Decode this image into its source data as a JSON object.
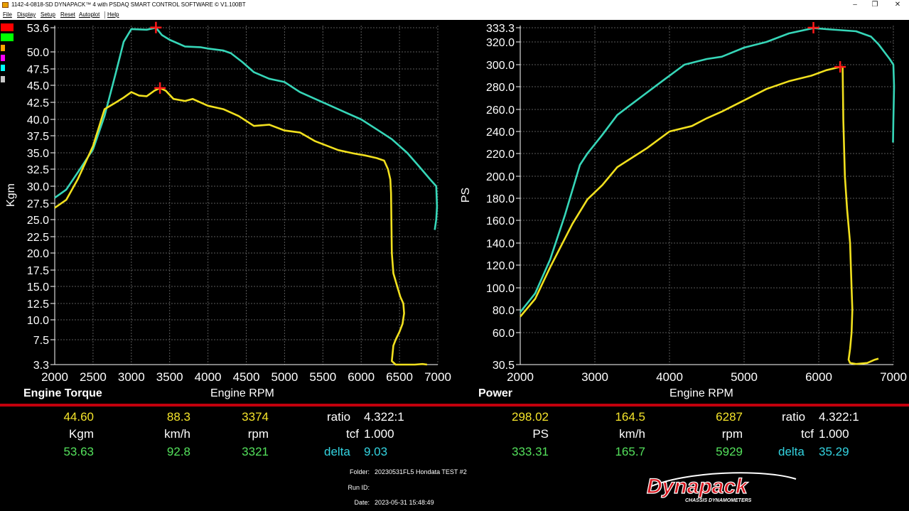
{
  "window": {
    "title": "1142-4-0818-SD DYNAPACK™ 4 with PSDAQ SMART CONTROL SOFTWARE © V1.100BT",
    "buttons": [
      "–",
      "❐",
      "✕"
    ]
  },
  "menu": [
    "File",
    "Display",
    "Setup",
    "Reset",
    "Autoplot",
    "Help"
  ],
  "legend_colors": [
    "#ff0000",
    "#00ff00",
    "#ffa500",
    "#ff00ff",
    "#00ffff",
    "#c8c8c8"
  ],
  "colors": {
    "series_a": "#36d6b8",
    "series_b": "#f1e01e",
    "marker": "#ff1a1a",
    "divider": "#c3000c"
  },
  "chart_data": [
    {
      "type": "line",
      "title": "Engine Torque",
      "xlabel": "Engine RPM",
      "ylabel": "Kgm",
      "xlim": [
        2000,
        7000
      ],
      "xticks": [
        2000,
        2500,
        3000,
        3500,
        4000,
        4500,
        5000,
        5500,
        6000,
        6500,
        7000
      ],
      "xtick_labels": [
        "2000",
        "2500",
        "3000",
        "3500",
        "4000",
        "4500",
        "5000",
        "5500",
        "6000",
        "6500",
        "7000"
      ],
      "yticks": [
        3.3,
        7.5,
        10.0,
        12.5,
        15.0,
        17.5,
        20.0,
        22.5,
        25.0,
        27.5,
        30.0,
        32.5,
        35.0,
        37.5,
        40.0,
        42.5,
        45.0,
        47.5,
        50.0,
        53.6
      ],
      "ytick_labels": [
        "3.3",
        "7.5",
        "10.0",
        "12.5",
        "15.0",
        "17.5",
        "20.0",
        "22.5",
        "25.0",
        "27.5",
        "30.0",
        "32.5",
        "35.0",
        "37.5",
        "40.0",
        "42.5",
        "45.0",
        "47.5",
        "50.0",
        "53.6"
      ],
      "grid": true,
      "peak_markers": [
        {
          "x": 3321,
          "y": 53.63
        },
        {
          "x": 3374,
          "y": 44.6
        }
      ],
      "series": [
        {
          "color": "#36d6b8",
          "x": [
            2000,
            2150,
            2300,
            2500,
            2650,
            2800,
            2900,
            3000,
            3200,
            3321,
            3400,
            3500,
            3700,
            3900,
            4000,
            4200,
            4300,
            4450,
            4600,
            4800,
            5000,
            5200,
            5400,
            5600,
            5800,
            6000,
            6200,
            6400,
            6600,
            6750,
            6900,
            6980,
            6990,
            6980,
            6960
          ],
          "y": [
            28.3,
            29.5,
            32.0,
            35.5,
            40.5,
            47.0,
            51.5,
            53.4,
            53.3,
            53.6,
            52.5,
            51.8,
            50.8,
            50.7,
            50.5,
            50.2,
            49.8,
            48.5,
            47.0,
            46.0,
            45.5,
            44.0,
            43.0,
            42.0,
            41.0,
            40.0,
            38.5,
            37.0,
            35.0,
            33.0,
            31.0,
            30.0,
            27.0,
            25.0,
            23.5
          ]
        },
        {
          "color": "#f1e01e",
          "x": [
            2000,
            2150,
            2300,
            2500,
            2650,
            2800,
            2900,
            3000,
            3100,
            3200,
            3300,
            3374,
            3450,
            3550,
            3700,
            3800,
            4000,
            4200,
            4400,
            4600,
            4800,
            5000,
            5200,
            5400,
            5700,
            5900,
            6050,
            6200,
            6300,
            6350,
            6380,
            6390,
            6400,
            6420,
            6470,
            6510,
            6550,
            6560,
            6540,
            6500,
            6450,
            6420,
            6400,
            6450,
            6550,
            6700,
            6800,
            6860
          ],
          "y": [
            26.8,
            28.0,
            31.0,
            36.0,
            41.5,
            42.5,
            43.2,
            44.0,
            43.5,
            43.4,
            44.2,
            44.6,
            44.2,
            43.0,
            42.7,
            43.0,
            42.0,
            41.5,
            40.5,
            39.0,
            39.2,
            38.3,
            38.0,
            36.7,
            35.4,
            34.9,
            34.6,
            34.2,
            33.8,
            32.5,
            31.0,
            29.0,
            20.0,
            17.0,
            15.0,
            13.5,
            12.5,
            11.0,
            9.5,
            8.5,
            7.5,
            6.5,
            3.9,
            3.3,
            3.3,
            3.3,
            3.4,
            3.3
          ]
        }
      ]
    },
    {
      "type": "line",
      "title": "Power",
      "xlabel": "Engine RPM",
      "ylabel": "PS",
      "xlim": [
        2000,
        7000
      ],
      "xticks": [
        2000,
        3000,
        4000,
        5000,
        6000,
        7000
      ],
      "xtick_labels": [
        "2000",
        "3000",
        "4000",
        "5000",
        "6000",
        "7000"
      ],
      "yticks": [
        30.5,
        60.0,
        80.0,
        100.0,
        120.0,
        140.0,
        160.0,
        180.0,
        200.0,
        220.0,
        240.0,
        260.0,
        280.0,
        300.0,
        320.0,
        333.3
      ],
      "ytick_labels": [
        "30.5",
        "60.0",
        "80.0",
        "100.0",
        "120.0",
        "140.0",
        "160.0",
        "180.0",
        "200.0",
        "220.0",
        "240.0",
        "260.0",
        "280.0",
        "300.0",
        "320.0",
        "333.3"
      ],
      "grid": true,
      "peak_markers": [
        {
          "x": 5929,
          "y": 333.31
        },
        {
          "x": 6287,
          "y": 298.02
        }
      ],
      "series": [
        {
          "color": "#36d6b8",
          "x": [
            2000,
            2200,
            2400,
            2600,
            2800,
            2900,
            3100,
            3300,
            3600,
            3900,
            4200,
            4500,
            4700,
            5000,
            5300,
            5600,
            5929,
            6100,
            6300,
            6500,
            6700,
            6800,
            6950,
            7000,
            7010,
            7000,
            6995
          ],
          "y": [
            78,
            95,
            125,
            165,
            210,
            220,
            237,
            255,
            270,
            285,
            300,
            305,
            307,
            315,
            320,
            328,
            333,
            332,
            331,
            330,
            325,
            318,
            305,
            300,
            280,
            250,
            230
          ],
          "note": ""
        },
        {
          "color": "#f1e01e",
          "x": [
            2000,
            2200,
            2400,
            2700,
            2900,
            3100,
            3300,
            3700,
            4000,
            4300,
            4500,
            4700,
            5000,
            5300,
            5600,
            5900,
            6100,
            6287,
            6320,
            6330,
            6350,
            6380,
            6420,
            6440,
            6450,
            6440,
            6420,
            6400,
            6420,
            6500,
            6650,
            6750,
            6800
          ],
          "y": [
            74,
            90,
            118,
            157,
            179,
            192,
            208,
            225,
            240,
            245,
            252,
            258,
            268,
            278,
            285,
            290,
            295,
            298,
            298,
            250,
            200,
            170,
            140,
            100,
            80,
            60,
            45,
            35,
            32,
            31,
            32,
            35,
            36
          ]
        }
      ]
    }
  ],
  "left_labels": {
    "caption": "Engine Torque",
    "xtitle": "Engine RPM"
  },
  "right_labels": {
    "caption": "Power",
    "xtitle": "Engine RPM"
  },
  "readouts_left": {
    "row1": [
      "44.60",
      "88.3",
      "3374"
    ],
    "row2": [
      "Kgm",
      "km/h",
      "rpm"
    ],
    "row3": [
      "53.63",
      "92.8",
      "3321"
    ],
    "ratio_label": "ratio",
    "ratio_value": "4.322:1",
    "tcf_label": "tcf",
    "tcf_value": "1.000",
    "delta_label": "delta",
    "delta_value": "9.03"
  },
  "readouts_right": {
    "row1": [
      "298.02",
      "164.5",
      "6287"
    ],
    "row2": [
      "PS",
      "km/h",
      "rpm"
    ],
    "row3": [
      "333.31",
      "165.7",
      "5929"
    ],
    "ratio_label": "ratio",
    "ratio_value": "4.322:1",
    "tcf_label": "tcf",
    "tcf_value": "1.000",
    "delta_label": "delta",
    "delta_value": "35.29"
  },
  "info": {
    "folder_label": "Folder:",
    "folder_value": "20230531FL5 Hondata TEST #2",
    "runid_label": "Run ID:",
    "runid_value": "",
    "date_label": "Date:",
    "date_value": "2023-05-31 15:48:49"
  },
  "logo": {
    "brand": "Dynapack",
    "tagline": "CHASSIS DYNAMOMETERS"
  }
}
